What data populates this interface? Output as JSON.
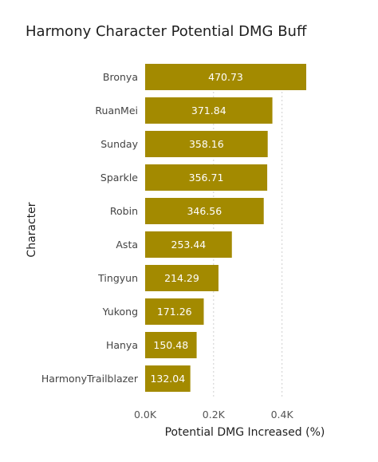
{
  "chart_data": {
    "type": "bar",
    "orientation": "horizontal",
    "title": "Harmony Character Potential DMG Buff",
    "xlabel": "Potential DMG Increased (%)",
    "ylabel": "Character",
    "categories": [
      "Bronya",
      "RuanMei",
      "Sunday",
      "Sparkle",
      "Robin",
      "Asta",
      "Tingyun",
      "Yukong",
      "Hanya",
      "HarmonyTrailblazer"
    ],
    "values": [
      470.73,
      371.84,
      358.16,
      356.71,
      346.56,
      253.44,
      214.29,
      171.26,
      150.48,
      132.04
    ],
    "value_labels": [
      "470.73",
      "371.84",
      "358.16",
      "356.71",
      "346.56",
      "253.44",
      "214.29",
      "171.26",
      "150.48",
      "132.04"
    ],
    "xticks": [
      0,
      200,
      400
    ],
    "xtick_labels": [
      "0.0K",
      "0.2K",
      "0.4K"
    ],
    "xlim": [
      0,
      470.73
    ],
    "bar_color": "#a38a00",
    "grid": "vertical-dashed"
  }
}
